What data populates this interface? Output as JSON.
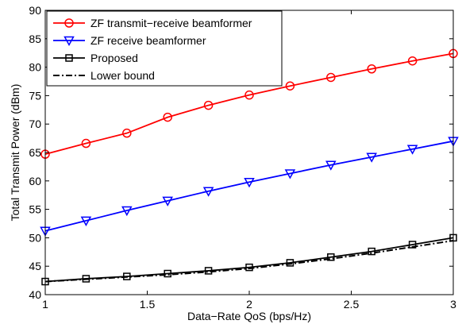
{
  "chart_data": {
    "type": "line",
    "xlabel": "Data−Rate QoS (bps/Hz)",
    "ylabel": "Total Transmit Power (dBm)",
    "xlim": [
      1,
      3
    ],
    "ylim": [
      40,
      90
    ],
    "xticks": [
      1,
      1.5,
      2,
      2.5,
      3
    ],
    "xtick_labels": [
      "1",
      "1.5",
      "2",
      "2.5",
      "3"
    ],
    "yticks": [
      40,
      45,
      50,
      55,
      60,
      65,
      70,
      75,
      80,
      85,
      90
    ],
    "ytick_labels": [
      "40",
      "45",
      "50",
      "55",
      "60",
      "65",
      "70",
      "75",
      "80",
      "85",
      "90"
    ],
    "grid": false,
    "legend_position": "top-left",
    "x": [
      1.0,
      1.2,
      1.4,
      1.6,
      1.8,
      2.0,
      2.2,
      2.4,
      2.6,
      2.8,
      3.0
    ],
    "series": [
      {
        "name": "ZF transmit−receive beamformer",
        "color": "#ff0000",
        "marker": "circle",
        "line_style": "solid",
        "values": [
          64.7,
          66.6,
          68.4,
          71.2,
          73.3,
          75.1,
          76.7,
          78.2,
          79.7,
          81.1,
          82.4
        ]
      },
      {
        "name": "ZF receive beamformer",
        "color": "#0000ff",
        "marker": "triangle-down",
        "line_style": "solid",
        "values": [
          51.2,
          53.0,
          54.8,
          56.5,
          58.2,
          59.8,
          61.3,
          62.8,
          64.2,
          65.6,
          67.0
        ]
      },
      {
        "name": "Proposed",
        "color": "#000000",
        "marker": "square",
        "line_style": "solid",
        "values": [
          42.3,
          42.8,
          43.2,
          43.7,
          44.2,
          44.8,
          45.6,
          46.6,
          47.6,
          48.8,
          50.0
        ]
      },
      {
        "name": "Lower bound",
        "color": "#000000",
        "marker": "none",
        "line_style": "dash-dot",
        "values": [
          42.3,
          42.7,
          43.1,
          43.5,
          44.0,
          44.6,
          45.4,
          46.3,
          47.3,
          48.4,
          49.5
        ]
      }
    ]
  }
}
